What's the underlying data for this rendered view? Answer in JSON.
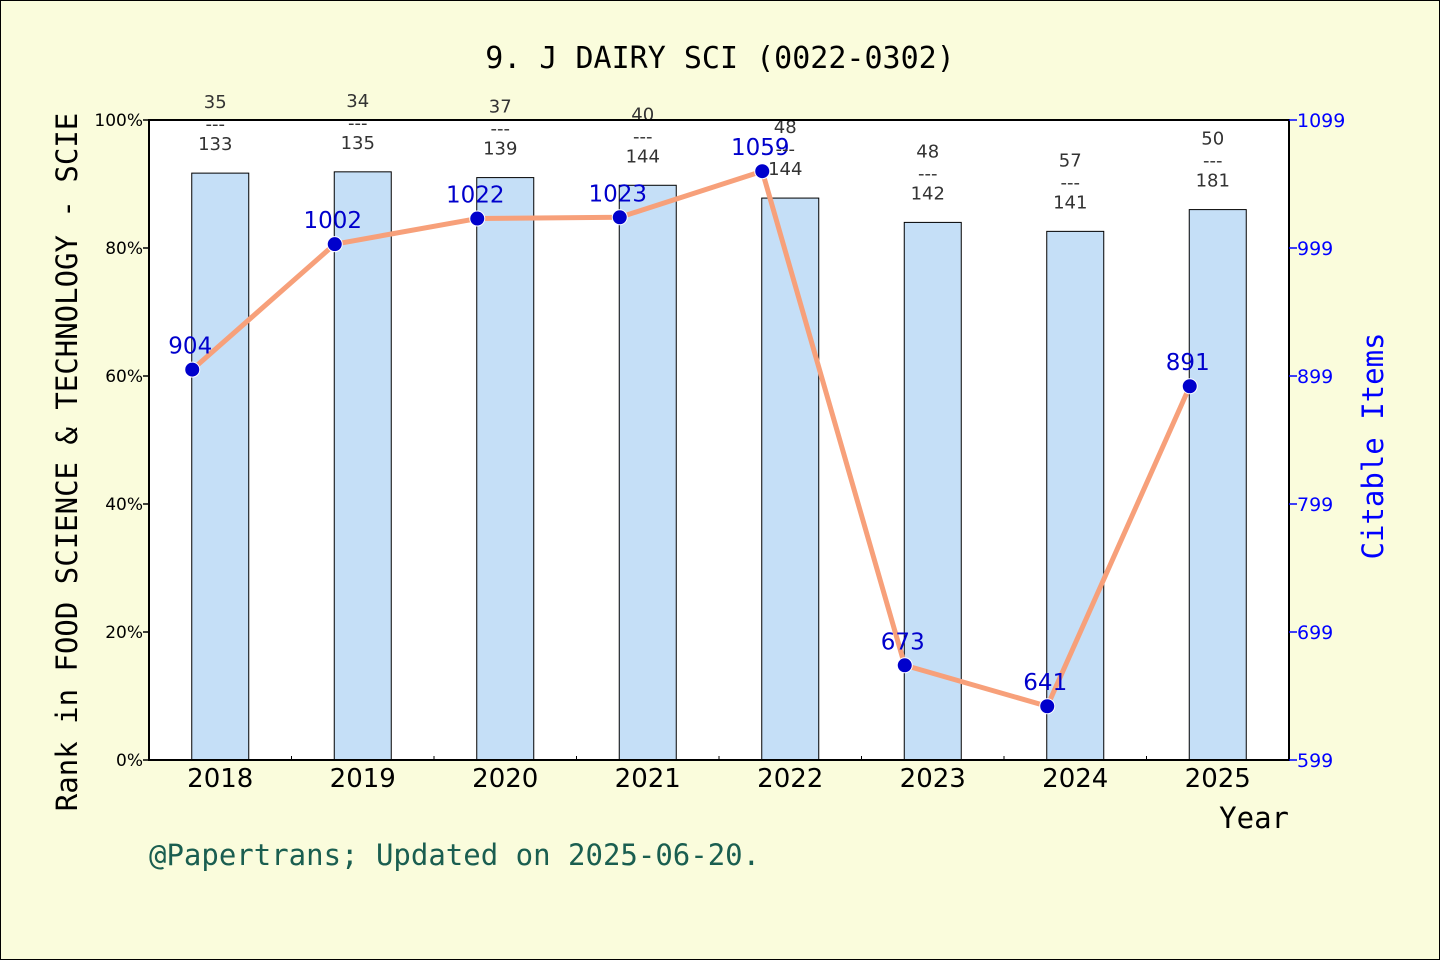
{
  "chart_data": {
    "type": "bar",
    "title": "9. J DAIRY SCI (0022-0302)",
    "xlabel": "Year",
    "ylabel": "Rank in FOOD SCIENCE & TECHNOLOGY - SCIE",
    "y2label": "Citable Items",
    "categories": [
      "2018",
      "2019",
      "2020",
      "2021",
      "2022",
      "2023",
      "2024",
      "2025"
    ],
    "rank_numerators": [
      "35",
      "34",
      "37",
      "40",
      "48",
      "48",
      "57",
      "50"
    ],
    "rank_denominators": [
      "133",
      "135",
      "139",
      "144",
      "144",
      "142",
      "141",
      "181"
    ],
    "series": [
      {
        "type": "bar",
        "axis": "left",
        "values": [
          0.917,
          0.919,
          0.91,
          0.898,
          0.878,
          0.84,
          0.826,
          0.86
        ],
        "color": "#c5dff7"
      },
      {
        "type": "line",
        "axis": "right",
        "values": [
          904,
          1002,
          1022,
          1023,
          1059,
          673,
          641,
          891
        ],
        "labels": [
          "904",
          "1002",
          "1022",
          "1023",
          "1059",
          "673",
          "641",
          "891"
        ],
        "color": "#f7a07a",
        "marker_color": "#0000cc"
      }
    ],
    "ylim": [
      0,
      1
    ],
    "y_ticks": [
      "0%",
      "20%",
      "40%",
      "60%",
      "80%",
      "100%"
    ],
    "y2lim": [
      599,
      1099
    ],
    "y2_ticks": [
      "599",
      "699",
      "799",
      "899",
      "999",
      "1099"
    ],
    "grid": false
  },
  "footer": {
    "credit": "@Papertrans; Updated on 2025-06-20."
  },
  "colors": {
    "background": "#fafcdc",
    "plot_background": "#ffffff",
    "right_axis": "#0000ff",
    "credit": "#1a5e50"
  }
}
